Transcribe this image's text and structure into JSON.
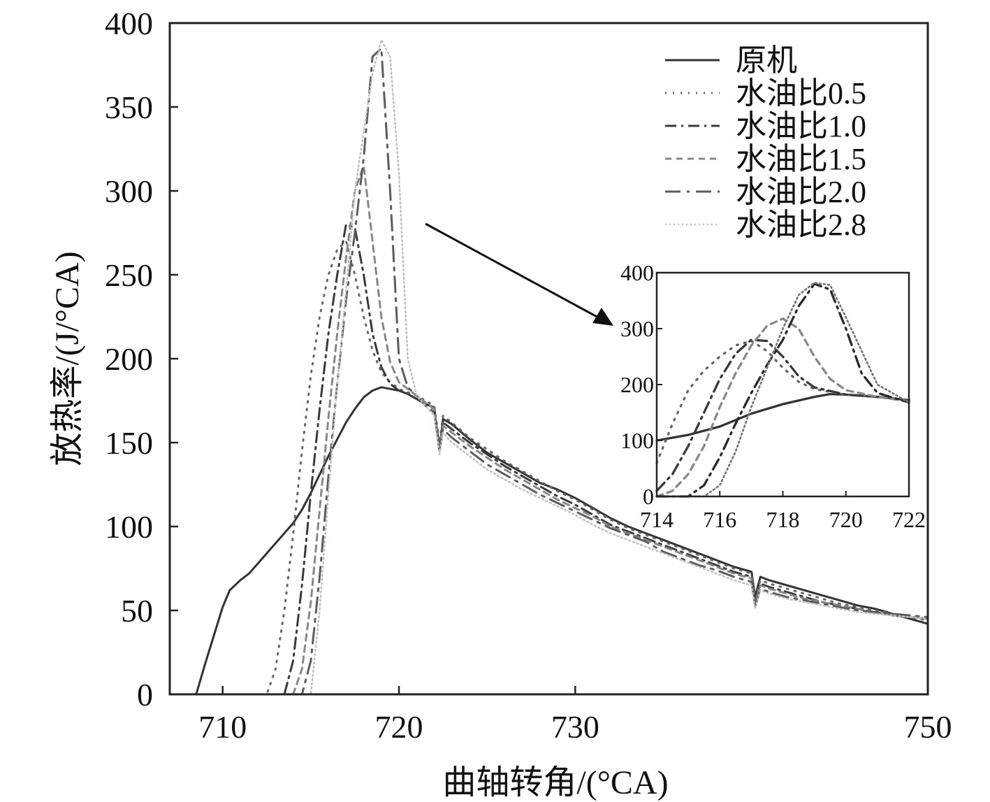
{
  "chart_data": [
    {
      "type": "line",
      "xlabel": "曲轴转角/(°CA)",
      "ylabel": "放热率/(J/°CA)",
      "xlim": [
        707,
        750
      ],
      "ylim": [
        0,
        400
      ],
      "xticks": [
        710,
        720,
        730,
        750
      ],
      "yticks": [
        0,
        50,
        100,
        150,
        200,
        250,
        300,
        350,
        400
      ],
      "grid": false,
      "legend": "top-right",
      "series": [
        {
          "name": "原机",
          "style": "solid",
          "color": "#333333",
          "x": [
            707.0,
            708.0,
            708.5,
            709.0,
            709.5,
            710.0,
            710.4,
            710.7,
            711.0,
            711.5,
            712.0,
            712.5,
            713.0,
            713.5,
            714.0,
            714.5,
            715.0,
            715.5,
            716.0,
            716.5,
            717.0,
            717.5,
            718.0,
            718.5,
            719.0,
            719.5,
            720.0,
            720.5,
            721.0,
            721.5,
            722.0,
            722.3,
            722.5,
            723.0,
            724.0,
            725.0,
            726.0,
            727.0,
            728.0,
            729.0,
            730.0,
            731.0,
            732.0,
            733.0,
            734.0,
            735.0,
            736.0,
            737.0,
            738.0,
            739.0,
            740.0,
            740.2,
            740.5,
            741.0,
            742.0,
            743.0,
            744.0,
            745.0,
            746.0,
            747.0,
            748.0,
            749.0,
            750.0
          ],
          "y": [
            0,
            0,
            0,
            18,
            35,
            52,
            62,
            65,
            68,
            72,
            78,
            84,
            90,
            96,
            102,
            110,
            120,
            131,
            142,
            152,
            162,
            170,
            177,
            181,
            183,
            182,
            181,
            179,
            176,
            173,
            171,
            145,
            164,
            161,
            152,
            144,
            138,
            132,
            126,
            122,
            117,
            111,
            105,
            100,
            96,
            92,
            88,
            84,
            80,
            76,
            73,
            58,
            70,
            68,
            65,
            62,
            59,
            56,
            53,
            51,
            48,
            45,
            42
          ]
        },
        {
          "name": "水油比0.5",
          "style": "dotted",
          "color": "#666666",
          "x": [
            707.0,
            712.5,
            713.0,
            713.5,
            714.0,
            714.5,
            715.0,
            715.5,
            716.0,
            716.5,
            717.0,
            717.5,
            718.0,
            718.5,
            719.0,
            719.5,
            720.0,
            720.5,
            721.0,
            721.5,
            722.0,
            722.3,
            722.5,
            723.0,
            724.0,
            725.0,
            726.0,
            727.0,
            728.0,
            729.0,
            730.0,
            731.0,
            732.0,
            733.0,
            734.0,
            735.0,
            736.0,
            737.0,
            738.0,
            739.0,
            740.0,
            740.2,
            740.5,
            741.0,
            742.0,
            743.0,
            744.0,
            745.0,
            746.0,
            747.0,
            748.0,
            749.0,
            750.0
          ],
          "y": [
            0,
            0,
            15,
            50,
            95,
            145,
            190,
            225,
            250,
            265,
            270,
            250,
            225,
            205,
            192,
            186,
            182,
            180,
            178,
            175,
            172,
            150,
            166,
            162,
            153,
            146,
            139,
            133,
            127,
            121,
            116,
            110,
            104,
            99,
            95,
            91,
            87,
            83,
            79,
            75,
            72,
            57,
            68,
            66,
            63,
            60,
            57,
            54,
            52,
            50,
            48,
            46,
            44
          ]
        },
        {
          "name": "水油比1.0",
          "style": "dashdot",
          "color": "#3a3a3a",
          "x": [
            707.0,
            713.5,
            714.0,
            714.5,
            715.0,
            715.5,
            716.0,
            716.5,
            717.0,
            717.5,
            718.0,
            718.5,
            719.0,
            719.5,
            720.0,
            720.5,
            721.0,
            721.5,
            722.0,
            722.3,
            722.5,
            723.0,
            724.0,
            725.0,
            726.0,
            727.0,
            728.0,
            729.0,
            730.0,
            731.0,
            732.0,
            733.0,
            734.0,
            735.0,
            736.0,
            737.0,
            738.0,
            739.0,
            740.0,
            740.2,
            740.5,
            741.0,
            742.0,
            743.0,
            744.0,
            745.0,
            746.0,
            747.0,
            748.0,
            749.0,
            750.0
          ],
          "y": [
            0,
            0,
            20,
            65,
            120,
            170,
            215,
            250,
            280,
            278,
            250,
            215,
            195,
            185,
            181,
            179,
            176,
            173,
            170,
            147,
            162,
            158,
            150,
            143,
            136,
            130,
            124,
            118,
            113,
            107,
            101,
            97,
            93,
            89,
            85,
            81,
            77,
            73,
            70,
            55,
            66,
            64,
            61,
            58,
            55,
            53,
            51,
            49,
            47,
            46,
            45
          ]
        },
        {
          "name": "水油比1.5",
          "style": "shortdash",
          "color": "#888888",
          "x": [
            707.0,
            714.0,
            714.5,
            715.0,
            715.5,
            716.0,
            716.5,
            717.0,
            717.5,
            718.0,
            718.5,
            719.0,
            719.5,
            720.0,
            720.5,
            721.0,
            721.5,
            722.0,
            722.3,
            722.5,
            723.0,
            724.0,
            725.0,
            726.0,
            727.0,
            728.0,
            729.0,
            730.0,
            731.0,
            732.0,
            733.0,
            734.0,
            735.0,
            736.0,
            737.0,
            738.0,
            739.0,
            740.0,
            740.2,
            740.5,
            741.0,
            742.0,
            743.0,
            744.0,
            745.0,
            746.0,
            747.0,
            748.0,
            749.0,
            750.0
          ],
          "y": [
            0,
            0,
            15,
            55,
            110,
            165,
            215,
            260,
            300,
            315,
            270,
            225,
            198,
            186,
            182,
            178,
            174,
            170,
            146,
            160,
            156,
            148,
            141,
            134,
            128,
            122,
            116,
            111,
            106,
            100,
            96,
            92,
            88,
            84,
            80,
            76,
            72,
            69,
            54,
            65,
            63,
            60,
            57,
            55,
            53,
            51,
            49,
            47,
            46,
            45
          ]
        },
        {
          "name": "水油比2.0",
          "style": "longdash",
          "color": "#5c5c5c",
          "x": [
            707.0,
            714.5,
            715.0,
            715.5,
            716.0,
            716.5,
            717.0,
            717.5,
            718.0,
            718.5,
            719.0,
            719.5,
            720.0,
            720.5,
            721.0,
            721.5,
            722.0,
            722.3,
            722.5,
            723.0,
            724.0,
            725.0,
            726.0,
            727.0,
            728.0,
            729.0,
            730.0,
            731.0,
            732.0,
            733.0,
            734.0,
            735.0,
            736.0,
            737.0,
            738.0,
            739.0,
            740.0,
            740.2,
            740.5,
            741.0,
            742.0,
            743.0,
            744.0,
            745.0,
            746.0,
            747.0,
            748.0,
            749.0,
            750.0
          ],
          "y": [
            0,
            0,
            20,
            70,
            130,
            185,
            235,
            275,
            320,
            380,
            385,
            300,
            200,
            183,
            178,
            172,
            168,
            145,
            158,
            153,
            145,
            137,
            131,
            125,
            119,
            114,
            109,
            104,
            99,
            95,
            91,
            85,
            81,
            77,
            74,
            70,
            67,
            52,
            63,
            61,
            58,
            56,
            54,
            52,
            50,
            49,
            48,
            47,
            46
          ]
        },
        {
          "name": "水油比2.8",
          "style": "fine-dotted",
          "color": "#bfbfbf",
          "x": [
            707.0,
            715.0,
            715.5,
            716.0,
            716.5,
            717.0,
            717.5,
            718.0,
            718.5,
            719.0,
            719.5,
            720.0,
            720.5,
            721.0,
            721.5,
            722.0,
            722.3,
            722.5,
            723.0,
            724.0,
            725.0,
            726.0,
            727.0,
            728.0,
            729.0,
            730.0,
            731.0,
            732.0,
            733.0,
            734.0,
            735.0,
            736.0,
            737.0,
            738.0,
            739.0,
            740.0,
            740.2,
            740.5,
            741.0,
            742.0,
            743.0,
            744.0,
            745.0,
            746.0,
            747.0,
            748.0,
            749.0,
            750.0
          ],
          "y": [
            0,
            0,
            50,
            120,
            185,
            240,
            300,
            335,
            370,
            390,
            380,
            310,
            200,
            178,
            172,
            166,
            143,
            156,
            150,
            142,
            134,
            128,
            122,
            117,
            112,
            107,
            101,
            96,
            92,
            88,
            84,
            80,
            76,
            72,
            68,
            65,
            51,
            62,
            60,
            57,
            55,
            53,
            51,
            49,
            48,
            47,
            46,
            45
          ]
        }
      ]
    },
    {
      "type": "line",
      "xlim": [
        714,
        722
      ],
      "ylim": [
        0,
        400
      ],
      "xticks": [
        714,
        716,
        718,
        720,
        722
      ],
      "yticks": [
        0,
        100,
        200,
        300,
        400
      ],
      "grid": false,
      "series": [
        {
          "style": "solid",
          "color": "#333333",
          "x": [
            714,
            715,
            716,
            717,
            718,
            719,
            719.5,
            720,
            721,
            722
          ],
          "y": [
            100,
            110,
            125,
            148,
            165,
            178,
            183,
            182,
            178,
            172
          ]
        },
        {
          "style": "dotted",
          "color": "#666666",
          "x": [
            714,
            714.5,
            715,
            715.5,
            716,
            716.5,
            717,
            717.5,
            718,
            718.5,
            719,
            720,
            721,
            722
          ],
          "y": [
            60,
            130,
            190,
            225,
            250,
            270,
            278,
            260,
            230,
            205,
            192,
            182,
            178,
            172
          ]
        },
        {
          "style": "dashdot",
          "color": "#3a3a3a",
          "x": [
            714,
            714.5,
            715,
            715.5,
            716,
            716.5,
            717,
            717.5,
            718,
            718.5,
            719,
            720,
            721,
            722
          ],
          "y": [
            10,
            40,
            90,
            150,
            210,
            255,
            280,
            278,
            250,
            215,
            195,
            182,
            178,
            172
          ]
        },
        {
          "style": "shortdash",
          "color": "#888888",
          "x": [
            714,
            714.5,
            715,
            715.5,
            716,
            716.5,
            717,
            717.5,
            718,
            718.5,
            719,
            719.5,
            720,
            721,
            722
          ],
          "y": [
            0,
            10,
            40,
            90,
            160,
            220,
            270,
            305,
            318,
            300,
            250,
            210,
            190,
            178,
            170
          ]
        },
        {
          "style": "dashdot",
          "color": "#2a2a2a",
          "x": [
            714,
            715,
            715.5,
            716,
            716.5,
            717,
            717.5,
            718,
            718.5,
            719,
            719.5,
            720,
            720.5,
            721,
            722
          ],
          "y": [
            0,
            0,
            20,
            70,
            130,
            185,
            235,
            280,
            340,
            380,
            370,
            300,
            220,
            185,
            168
          ]
        },
        {
          "style": "fine-dotted",
          "color": "#777777",
          "x": [
            714,
            715.5,
            716,
            716.5,
            717,
            717.5,
            718,
            718.5,
            719,
            719.5,
            720,
            720.5,
            721,
            722
          ],
          "y": [
            0,
            0,
            20,
            80,
            160,
            230,
            300,
            360,
            382,
            378,
            320,
            260,
            200,
            168
          ]
        }
      ]
    }
  ]
}
